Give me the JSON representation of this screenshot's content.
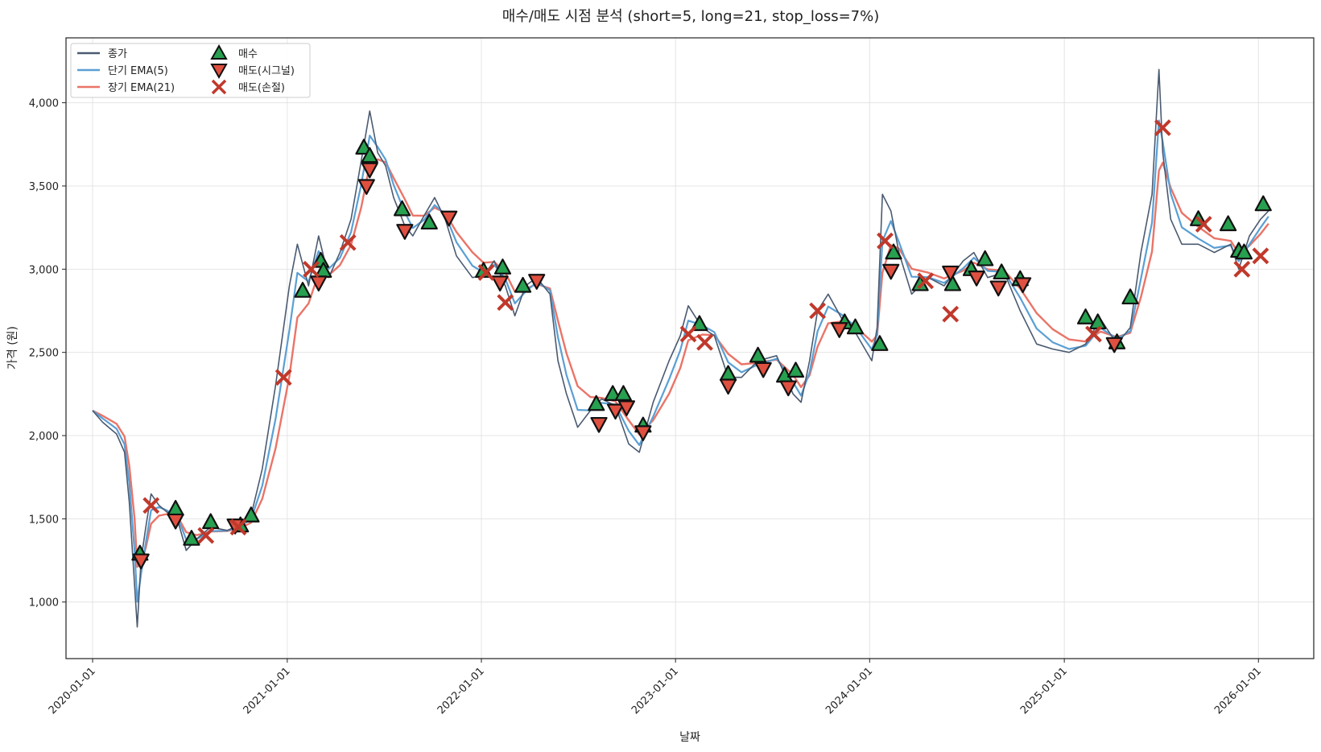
{
  "chart_data": {
    "type": "line",
    "title": "매수/매도 시점 분석 (short=5, long=21, stop_loss=7%)",
    "xlabel": "날짜",
    "ylabel": "가격 (원)",
    "xlim": [
      "2019-11-12",
      "2026-04-15"
    ],
    "ylim": [
      660,
      4390
    ],
    "x_ticks": [
      "2020-01-01",
      "2021-01-01",
      "2022-01-01",
      "2023-01-01",
      "2024-01-01",
      "2025-01-01",
      "2026-01-01"
    ],
    "y_ticks": [
      1000,
      1500,
      2000,
      2500,
      3000,
      3500,
      4000
    ],
    "y_tick_labels": [
      "1,000",
      "1,500",
      "2,000",
      "2,500",
      "3,000",
      "3,500",
      "4,000"
    ],
    "grid": true,
    "legend_position": "top-left",
    "legend": [
      {
        "label": "종가",
        "kind": "line",
        "color": "#4a5a70"
      },
      {
        "label": "단기 EMA(5)",
        "kind": "line",
        "color": "#5a9fd4"
      },
      {
        "label": "장기 EMA(21)",
        "kind": "line",
        "color": "#ea7468"
      },
      {
        "label": "매수",
        "kind": "marker-up",
        "color": "#27a050"
      },
      {
        "label": "매도(시그널)",
        "kind": "marker-down",
        "color": "#e05040"
      },
      {
        "label": "매도(손절)",
        "kind": "marker-x",
        "color": "#c0392b"
      }
    ],
    "close_series": {
      "name": "종가",
      "points": [
        [
          "2020-01-01",
          2150
        ],
        [
          "2020-01-20",
          2080
        ],
        [
          "2020-02-15",
          2010
        ],
        [
          "2020-03-01",
          1900
        ],
        [
          "2020-03-10",
          1600
        ],
        [
          "2020-03-20",
          1100
        ],
        [
          "2020-03-25",
          850
        ],
        [
          "2020-04-01",
          1250
        ],
        [
          "2020-04-10",
          1450
        ],
        [
          "2020-04-20",
          1650
        ],
        [
          "2020-05-05",
          1580
        ],
        [
          "2020-05-20",
          1540
        ],
        [
          "2020-06-10",
          1480
        ],
        [
          "2020-06-25",
          1310
        ],
        [
          "2020-07-15",
          1380
        ],
        [
          "2020-08-10",
          1450
        ],
        [
          "2020-09-10",
          1430
        ],
        [
          "2020-10-01",
          1460
        ],
        [
          "2020-10-25",
          1520
        ],
        [
          "2020-11-15",
          1800
        ],
        [
          "2020-12-10",
          2300
        ],
        [
          "2021-01-05",
          2900
        ],
        [
          "2021-01-20",
          3150
        ],
        [
          "2021-02-10",
          2900
        ],
        [
          "2021-03-01",
          3200
        ],
        [
          "2021-03-20",
          2950
        ],
        [
          "2021-04-10",
          3100
        ],
        [
          "2021-05-01",
          3300
        ],
        [
          "2021-05-20",
          3650
        ],
        [
          "2021-06-05",
          3950
        ],
        [
          "2021-06-20",
          3700
        ],
        [
          "2021-07-05",
          3620
        ],
        [
          "2021-07-20",
          3430
        ],
        [
          "2021-08-10",
          3260
        ],
        [
          "2021-08-25",
          3200
        ],
        [
          "2021-09-15",
          3320
        ],
        [
          "2021-10-05",
          3430
        ],
        [
          "2021-10-25",
          3300
        ],
        [
          "2021-11-15",
          3080
        ],
        [
          "2021-12-15",
          2950
        ],
        [
          "2022-01-05",
          2960
        ],
        [
          "2022-01-25",
          3050
        ],
        [
          "2022-02-15",
          2900
        ],
        [
          "2022-03-05",
          2720
        ],
        [
          "2022-03-25",
          2900
        ],
        [
          "2022-04-15",
          2950
        ],
        [
          "2022-05-10",
          2850
        ],
        [
          "2022-05-25",
          2450
        ],
        [
          "2022-06-10",
          2250
        ],
        [
          "2022-07-01",
          2050
        ],
        [
          "2022-07-25",
          2150
        ],
        [
          "2022-08-15",
          2220
        ],
        [
          "2022-09-10",
          2180
        ],
        [
          "2022-10-05",
          1950
        ],
        [
          "2022-10-25",
          1900
        ],
        [
          "2022-11-20",
          2200
        ],
        [
          "2022-12-20",
          2450
        ],
        [
          "2023-01-10",
          2600
        ],
        [
          "2023-01-25",
          2780
        ],
        [
          "2023-02-20",
          2650
        ],
        [
          "2023-03-15",
          2600
        ],
        [
          "2023-04-10",
          2350
        ],
        [
          "2023-05-05",
          2350
        ],
        [
          "2023-06-05",
          2450
        ],
        [
          "2023-07-10",
          2480
        ],
        [
          "2023-08-10",
          2250
        ],
        [
          "2023-08-25",
          2200
        ],
        [
          "2023-09-10",
          2450
        ],
        [
          "2023-09-25",
          2750
        ],
        [
          "2023-10-15",
          2850
        ],
        [
          "2023-11-10",
          2700
        ],
        [
          "2023-12-05",
          2620
        ],
        [
          "2024-01-05",
          2450
        ],
        [
          "2024-01-15",
          2650
        ],
        [
          "2024-01-25",
          3450
        ],
        [
          "2024-02-10",
          3350
        ],
        [
          "2024-02-25",
          3100
        ],
        [
          "2024-03-20",
          2850
        ],
        [
          "2024-04-20",
          2950
        ],
        [
          "2024-05-20",
          2900
        ],
        [
          "2024-06-25",
          3050
        ],
        [
          "2024-07-15",
          3100
        ],
        [
          "2024-08-10",
          2950
        ],
        [
          "2024-09-10",
          2980
        ],
        [
          "2024-10-10",
          2750
        ],
        [
          "2024-11-10",
          2550
        ],
        [
          "2024-12-10",
          2520
        ],
        [
          "2025-01-10",
          2500
        ],
        [
          "2025-02-10",
          2550
        ],
        [
          "2025-03-10",
          2700
        ],
        [
          "2025-04-10",
          2550
        ],
        [
          "2025-05-05",
          2650
        ],
        [
          "2025-05-25",
          3100
        ],
        [
          "2025-06-15",
          3450
        ],
        [
          "2025-06-28",
          4200
        ],
        [
          "2025-07-05",
          3700
        ],
        [
          "2025-07-20",
          3300
        ],
        [
          "2025-08-10",
          3150
        ],
        [
          "2025-09-10",
          3150
        ],
        [
          "2025-10-10",
          3100
        ],
        [
          "2025-11-10",
          3150
        ],
        [
          "2025-11-25",
          3000
        ],
        [
          "2025-12-15",
          3200
        ],
        [
          "2026-01-05",
          3300
        ],
        [
          "2026-01-20",
          3350
        ]
      ]
    },
    "short_ema_offset_note": "",
    "buy_markers": [
      [
        "2020-03-30",
        1290
      ],
      [
        "2020-06-05",
        1560
      ],
      [
        "2020-07-05",
        1380
      ],
      [
        "2020-08-10",
        1480
      ],
      [
        "2020-10-05",
        1460
      ],
      [
        "2020-10-25",
        1520
      ],
      [
        "2021-01-30",
        2870
      ],
      [
        "2021-03-05",
        3050
      ],
      [
        "2021-03-10",
        2990
      ],
      [
        "2021-05-25",
        3730
      ],
      [
        "2021-06-05",
        3680
      ],
      [
        "2021-08-05",
        3360
      ],
      [
        "2021-09-25",
        3280
      ],
      [
        "2022-01-05",
        2990
      ],
      [
        "2022-02-10",
        3010
      ],
      [
        "2022-03-20",
        2900
      ],
      [
        "2022-08-05",
        2190
      ],
      [
        "2022-09-05",
        2250
      ],
      [
        "2022-09-25",
        2250
      ],
      [
        "2022-11-01",
        2060
      ],
      [
        "2023-02-15",
        2670
      ],
      [
        "2023-04-10",
        2370
      ],
      [
        "2023-06-05",
        2480
      ],
      [
        "2023-07-25",
        2360
      ],
      [
        "2023-08-15",
        2390
      ],
      [
        "2023-11-15",
        2680
      ],
      [
        "2023-12-05",
        2650
      ],
      [
        "2024-01-20",
        2550
      ],
      [
        "2024-02-15",
        3100
      ],
      [
        "2024-04-05",
        2910
      ],
      [
        "2024-06-05",
        2910
      ],
      [
        "2024-07-10",
        3000
      ],
      [
        "2024-08-05",
        3060
      ],
      [
        "2024-09-05",
        2980
      ],
      [
        "2024-10-10",
        2940
      ],
      [
        "2025-02-10",
        2710
      ],
      [
        "2025-03-05",
        2680
      ],
      [
        "2025-04-10",
        2560
      ],
      [
        "2025-05-05",
        2830
      ],
      [
        "2025-09-10",
        3300
      ],
      [
        "2025-11-05",
        3270
      ],
      [
        "2025-11-25",
        3110
      ],
      [
        "2025-12-05",
        3100
      ],
      [
        "2026-01-10",
        3390
      ]
    ],
    "sell_signal_markers": [
      [
        "2020-04-01",
        1250
      ],
      [
        "2020-06-05",
        1490
      ],
      [
        "2020-09-25",
        1460
      ],
      [
        "2021-03-01",
        2920
      ],
      [
        "2021-05-30",
        3500
      ],
      [
        "2021-06-05",
        3600
      ],
      [
        "2021-08-10",
        3230
      ],
      [
        "2021-11-01",
        3310
      ],
      [
        "2022-02-05",
        2920
      ],
      [
        "2022-04-15",
        2930
      ],
      [
        "2022-08-10",
        2070
      ],
      [
        "2022-09-10",
        2150
      ],
      [
        "2022-10-01",
        2170
      ],
      [
        "2022-11-01",
        2020
      ],
      [
        "2023-04-10",
        2300
      ],
      [
        "2023-06-15",
        2400
      ],
      [
        "2023-08-01",
        2290
      ],
      [
        "2023-11-05",
        2640
      ],
      [
        "2024-02-10",
        2990
      ],
      [
        "2024-06-01",
        2980
      ],
      [
        "2024-07-20",
        2950
      ],
      [
        "2024-08-30",
        2890
      ],
      [
        "2024-10-15",
        2910
      ],
      [
        "2025-04-05",
        2550
      ]
    ],
    "sell_stoploss_markers": [
      [
        "2020-04-20",
        1580
      ],
      [
        "2020-08-01",
        1400
      ],
      [
        "2020-10-01",
        1450
      ],
      [
        "2020-12-25",
        2350
      ],
      [
        "2021-02-15",
        3000
      ],
      [
        "2021-04-25",
        3160
      ],
      [
        "2022-01-10",
        2980
      ],
      [
        "2022-02-15",
        2800
      ],
      [
        "2023-01-25",
        2610
      ],
      [
        "2023-02-25",
        2560
      ],
      [
        "2023-09-25",
        2750
      ],
      [
        "2024-01-30",
        3170
      ],
      [
        "2024-04-15",
        2930
      ],
      [
        "2024-06-01",
        2730
      ],
      [
        "2025-02-25",
        2610
      ],
      [
        "2025-07-05",
        3850
      ],
      [
        "2025-09-20",
        3270
      ],
      [
        "2025-12-01",
        3000
      ],
      [
        "2026-01-05",
        3080
      ]
    ]
  }
}
